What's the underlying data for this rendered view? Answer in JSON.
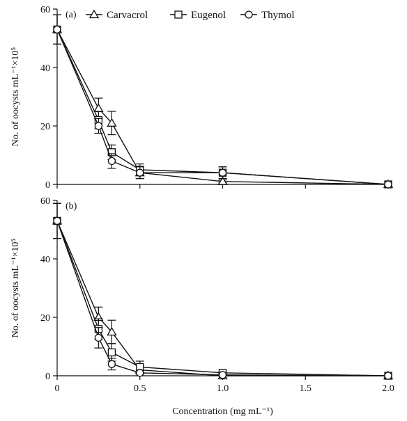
{
  "chart_data": {
    "type": "line",
    "xlabel": "Concentration (mg mL⁻¹)",
    "ylabel": "No. of oocysts mL⁻¹×10⁵",
    "xlim": [
      0,
      2.0
    ],
    "ylim": [
      0,
      60
    ],
    "xticks": [
      0,
      0.5,
      1.0,
      1.5,
      2.0
    ],
    "xtick_labels": [
      "0",
      "0.5",
      "1.0",
      "1.5",
      "2.0"
    ],
    "yticks": [
      0,
      20,
      40,
      60
    ],
    "ytick_labels": [
      "0",
      "20",
      "40",
      "60"
    ],
    "legend": [
      "Carvacrol",
      "Eugenol",
      "Thymol"
    ],
    "legend_placement": "top",
    "grid": false,
    "panels": [
      {
        "label": "(a)",
        "x": [
          0,
          0.25,
          0.33,
          0.5,
          1.0,
          2.0
        ],
        "series": [
          {
            "name": "Carvacrol",
            "marker": "triangle",
            "values": [
              53,
              26,
              21,
              4,
              1,
              0
            ],
            "errors": [
              5,
              3.5,
              4,
              2,
              0.5,
              0
            ]
          },
          {
            "name": "Eugenol",
            "marker": "square",
            "values": [
              53,
              22,
              11,
              5,
              4,
              0
            ],
            "errors": [
              5,
              3,
              2.5,
              2,
              2,
              0
            ]
          },
          {
            "name": "Thymol",
            "marker": "circle",
            "values": [
              53,
              20,
              8,
              4,
              4,
              0
            ],
            "errors": [
              5,
              2.5,
              2.5,
              2,
              2,
              0
            ]
          }
        ]
      },
      {
        "label": "(b)",
        "x": [
          0,
          0.25,
          0.33,
          0.5,
          1.0,
          2.0
        ],
        "series": [
          {
            "name": "Carvacrol",
            "marker": "triangle",
            "values": [
              53,
              20,
              15,
              2,
              0,
              0
            ],
            "errors": [
              6,
              3.5,
              4,
              1.5,
              0.5,
              0
            ]
          },
          {
            "name": "Eugenol",
            "marker": "square",
            "values": [
              53,
              16,
              8,
              3,
              1,
              0
            ],
            "errors": [
              6,
              3.5,
              3,
              2,
              0.5,
              0
            ]
          },
          {
            "name": "Thymol",
            "marker": "circle",
            "values": [
              53,
              13,
              4,
              1,
              0.3,
              0
            ],
            "errors": [
              6,
              3.5,
              2,
              1,
              0.5,
              0
            ]
          }
        ]
      }
    ]
  }
}
